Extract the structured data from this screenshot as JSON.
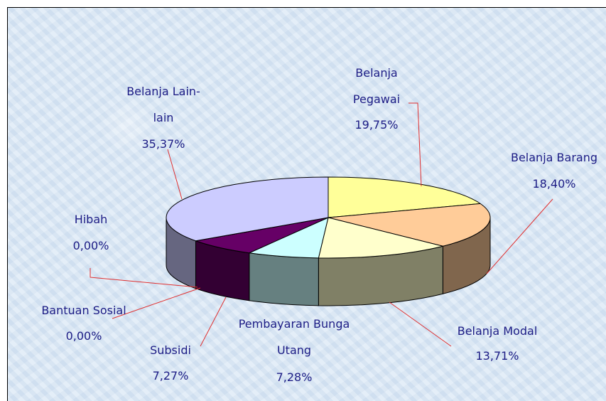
{
  "chart_data": {
    "type": "pie3d",
    "categories": [
      "Belanja Pegawai",
      "Belanja Barang",
      "Belanja Modal",
      "Pembayaran Bunga Utang",
      "Subsidi",
      "Bantuan Sosial",
      "Hibah",
      "Belanja Lain-lain"
    ],
    "values": [
      19.75,
      18.4,
      13.71,
      7.28,
      7.27,
      0.0,
      0.0,
      35.37
    ],
    "value_labels": [
      "19,75%",
      "18,40%",
      "13,71%",
      "7,28%",
      "7,27%",
      "0,00%",
      "0,00%",
      "35,37%"
    ],
    "colors": [
      "#ffff99",
      "#ffcc99",
      "#ffffcc",
      "#ccffff",
      "#660066",
      "#993366",
      "#ff8080",
      "#ccccff"
    ]
  }
}
